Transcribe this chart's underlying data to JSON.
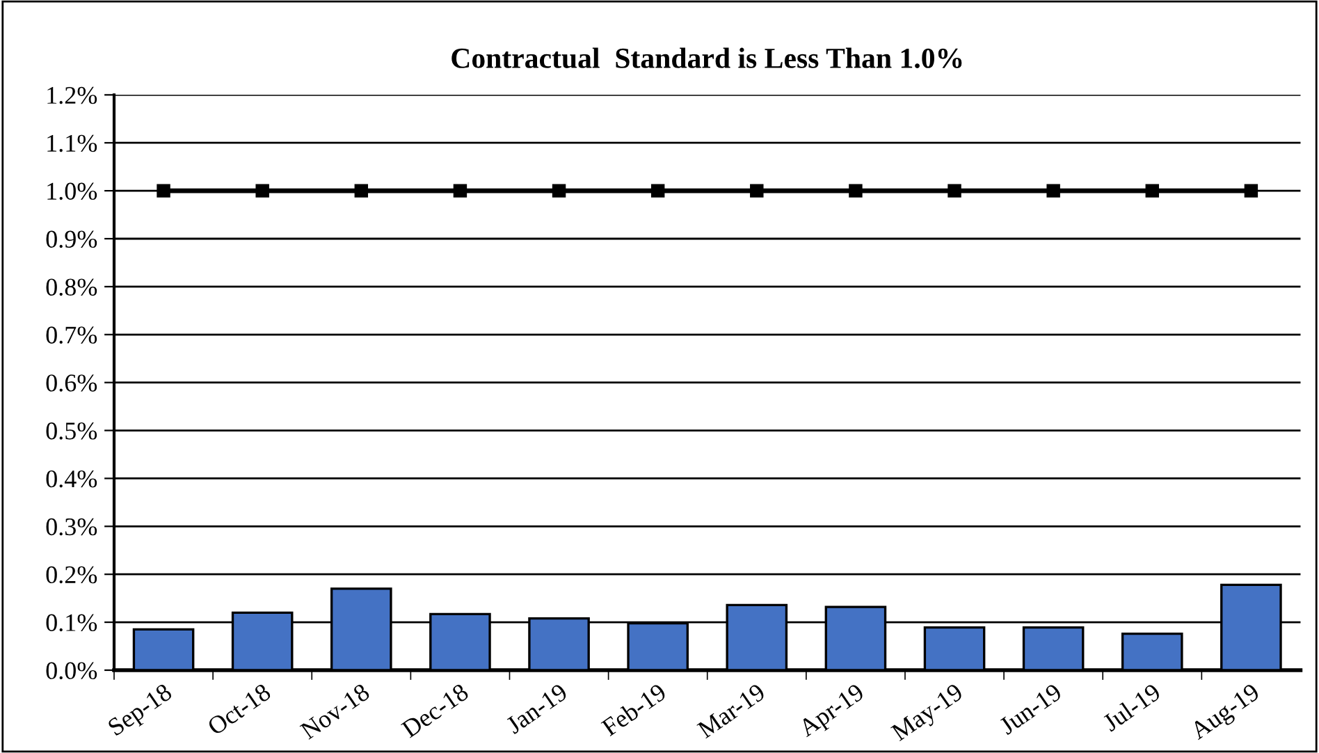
{
  "chart_data": {
    "type": "bar",
    "title": "Contractual  Standard is Less Than 1.0%",
    "categories": [
      "Sep-18",
      "Oct-18",
      "Nov-18",
      "Dec-18",
      "Jan-19",
      "Feb-19",
      "Mar-19",
      "Apr-19",
      "May-19",
      "Jun-19",
      "Jul-19",
      "Aug-19"
    ],
    "series": [
      {
        "color": "#4472c4",
        "values": [
          0.085,
          0.12,
          0.17,
          0.117,
          0.108,
          0.098,
          0.136,
          0.132,
          0.089,
          0.089,
          0.076,
          0.178
        ]
      },
      {
        "type": "line",
        "color": "#000000",
        "marker": "square",
        "line_style": "solid",
        "values": [
          1.0,
          1.0,
          1.0,
          1.0,
          1.0,
          1.0,
          1.0,
          1.0,
          1.0,
          1.0,
          1.0,
          1.0
        ]
      }
    ],
    "ylim": [
      0,
      1.2
    ],
    "yticks": [
      {
        "value": 0,
        "label": "0.0%"
      },
      {
        "value": 0.1,
        "label": "0.1%"
      },
      {
        "value": 0.2,
        "label": "0.2%"
      },
      {
        "value": 0.3,
        "label": "0.3%"
      },
      {
        "value": 0.4,
        "label": "0.4%"
      },
      {
        "value": 0.5,
        "label": "0.5%"
      },
      {
        "value": 0.6,
        "label": "0.6%"
      },
      {
        "value": 0.7,
        "label": "0.7%"
      },
      {
        "value": 0.8,
        "label": "0.8%"
      },
      {
        "value": 0.9,
        "label": "0.9%"
      },
      {
        "value": 1.0,
        "label": "1.0%"
      },
      {
        "value": 1.1,
        "label": "1.1%"
      },
      {
        "value": 1.2,
        "label": "1.2%"
      }
    ],
    "grid": "y",
    "legend": false
  }
}
